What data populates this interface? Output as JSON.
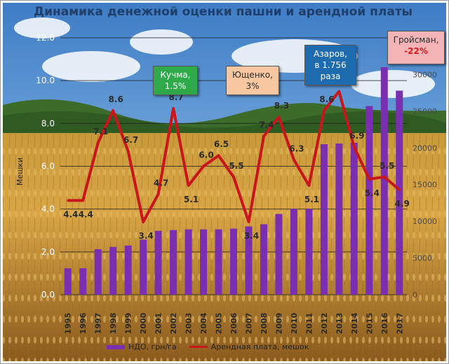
{
  "chart_data": {
    "type": "bar+line",
    "title": "Динамика денежной оценки пашни и арендной платы",
    "ylabel": "Мешки",
    "categories": [
      "1995",
      "1996",
      "1997",
      "1998",
      "1999",
      "2000",
      "2001",
      "2002",
      "2003",
      "2004",
      "2005",
      "2006",
      "2007",
      "2008",
      "2009",
      "2010",
      "2011",
      "2012",
      "2013",
      "2014",
      "2015",
      "2016",
      "2017"
    ],
    "ylim_left": [
      0,
      12
    ],
    "yticks_left": [
      "0.0",
      "2.0",
      "4.0",
      "6.0",
      "8.0",
      "10.0",
      "12.0"
    ],
    "ylim_right": [
      0,
      35000
    ],
    "yticks_right": [
      "0",
      "5000",
      "10000",
      "15000",
      "20000",
      "25000",
      "30000"
    ],
    "series": [
      {
        "name": "НДО, грн/га",
        "type": "bar",
        "axis": "right",
        "color": "#7a2fb0",
        "values": [
          3600,
          3600,
          6200,
          6500,
          6700,
          7500,
          8700,
          8800,
          8900,
          8900,
          8900,
          9000,
          9300,
          9600,
          11000,
          11700,
          11700,
          20500,
          20600,
          20700,
          25700,
          31000,
          27800
        ]
      },
      {
        "name": "Арендная плата, мешок",
        "type": "line",
        "axis": "left",
        "color": "#c8161d",
        "values": [
          4.4,
          4.4,
          7.1,
          8.6,
          6.7,
          3.4,
          4.7,
          8.7,
          5.1,
          6.0,
          6.5,
          5.5,
          3.4,
          7.4,
          8.3,
          6.3,
          5.1,
          8.6,
          9.5,
          6.9,
          5.4,
          5.5,
          4.9
        ],
        "labels": [
          "4.4",
          "4.4",
          "7.1",
          "8.6",
          "6.7",
          "3.4",
          "4.7",
          "8.7",
          "5.1",
          "6.0",
          "6.5",
          "5.5",
          "3.4",
          "7.4",
          "8.3",
          "6.3",
          "5.1",
          "8.6",
          "9.5",
          "6.9",
          "5.4",
          "5.5",
          "4.9"
        ]
      }
    ],
    "annotations": [
      {
        "lines": [
          "Кучма,",
          "1.5%"
        ],
        "bg": "#2faa4a",
        "fg": "#ffffff"
      },
      {
        "lines": [
          "Ющенко,",
          "3%"
        ],
        "bg": "#f6c7a0",
        "fg": "#2b2b2b"
      },
      {
        "lines": [
          "Азаров,",
          "в  1.756",
          "раза"
        ],
        "bg": "#1f6bb0",
        "fg": "#ffffff"
      },
      {
        "lines": [
          "Гройсман,",
          "-22%"
        ],
        "bg": "#f3b4b8",
        "fg": "#2b2b2b",
        "accent": "#d11a1a"
      }
    ],
    "legend": "bottom",
    "grid": true
  }
}
